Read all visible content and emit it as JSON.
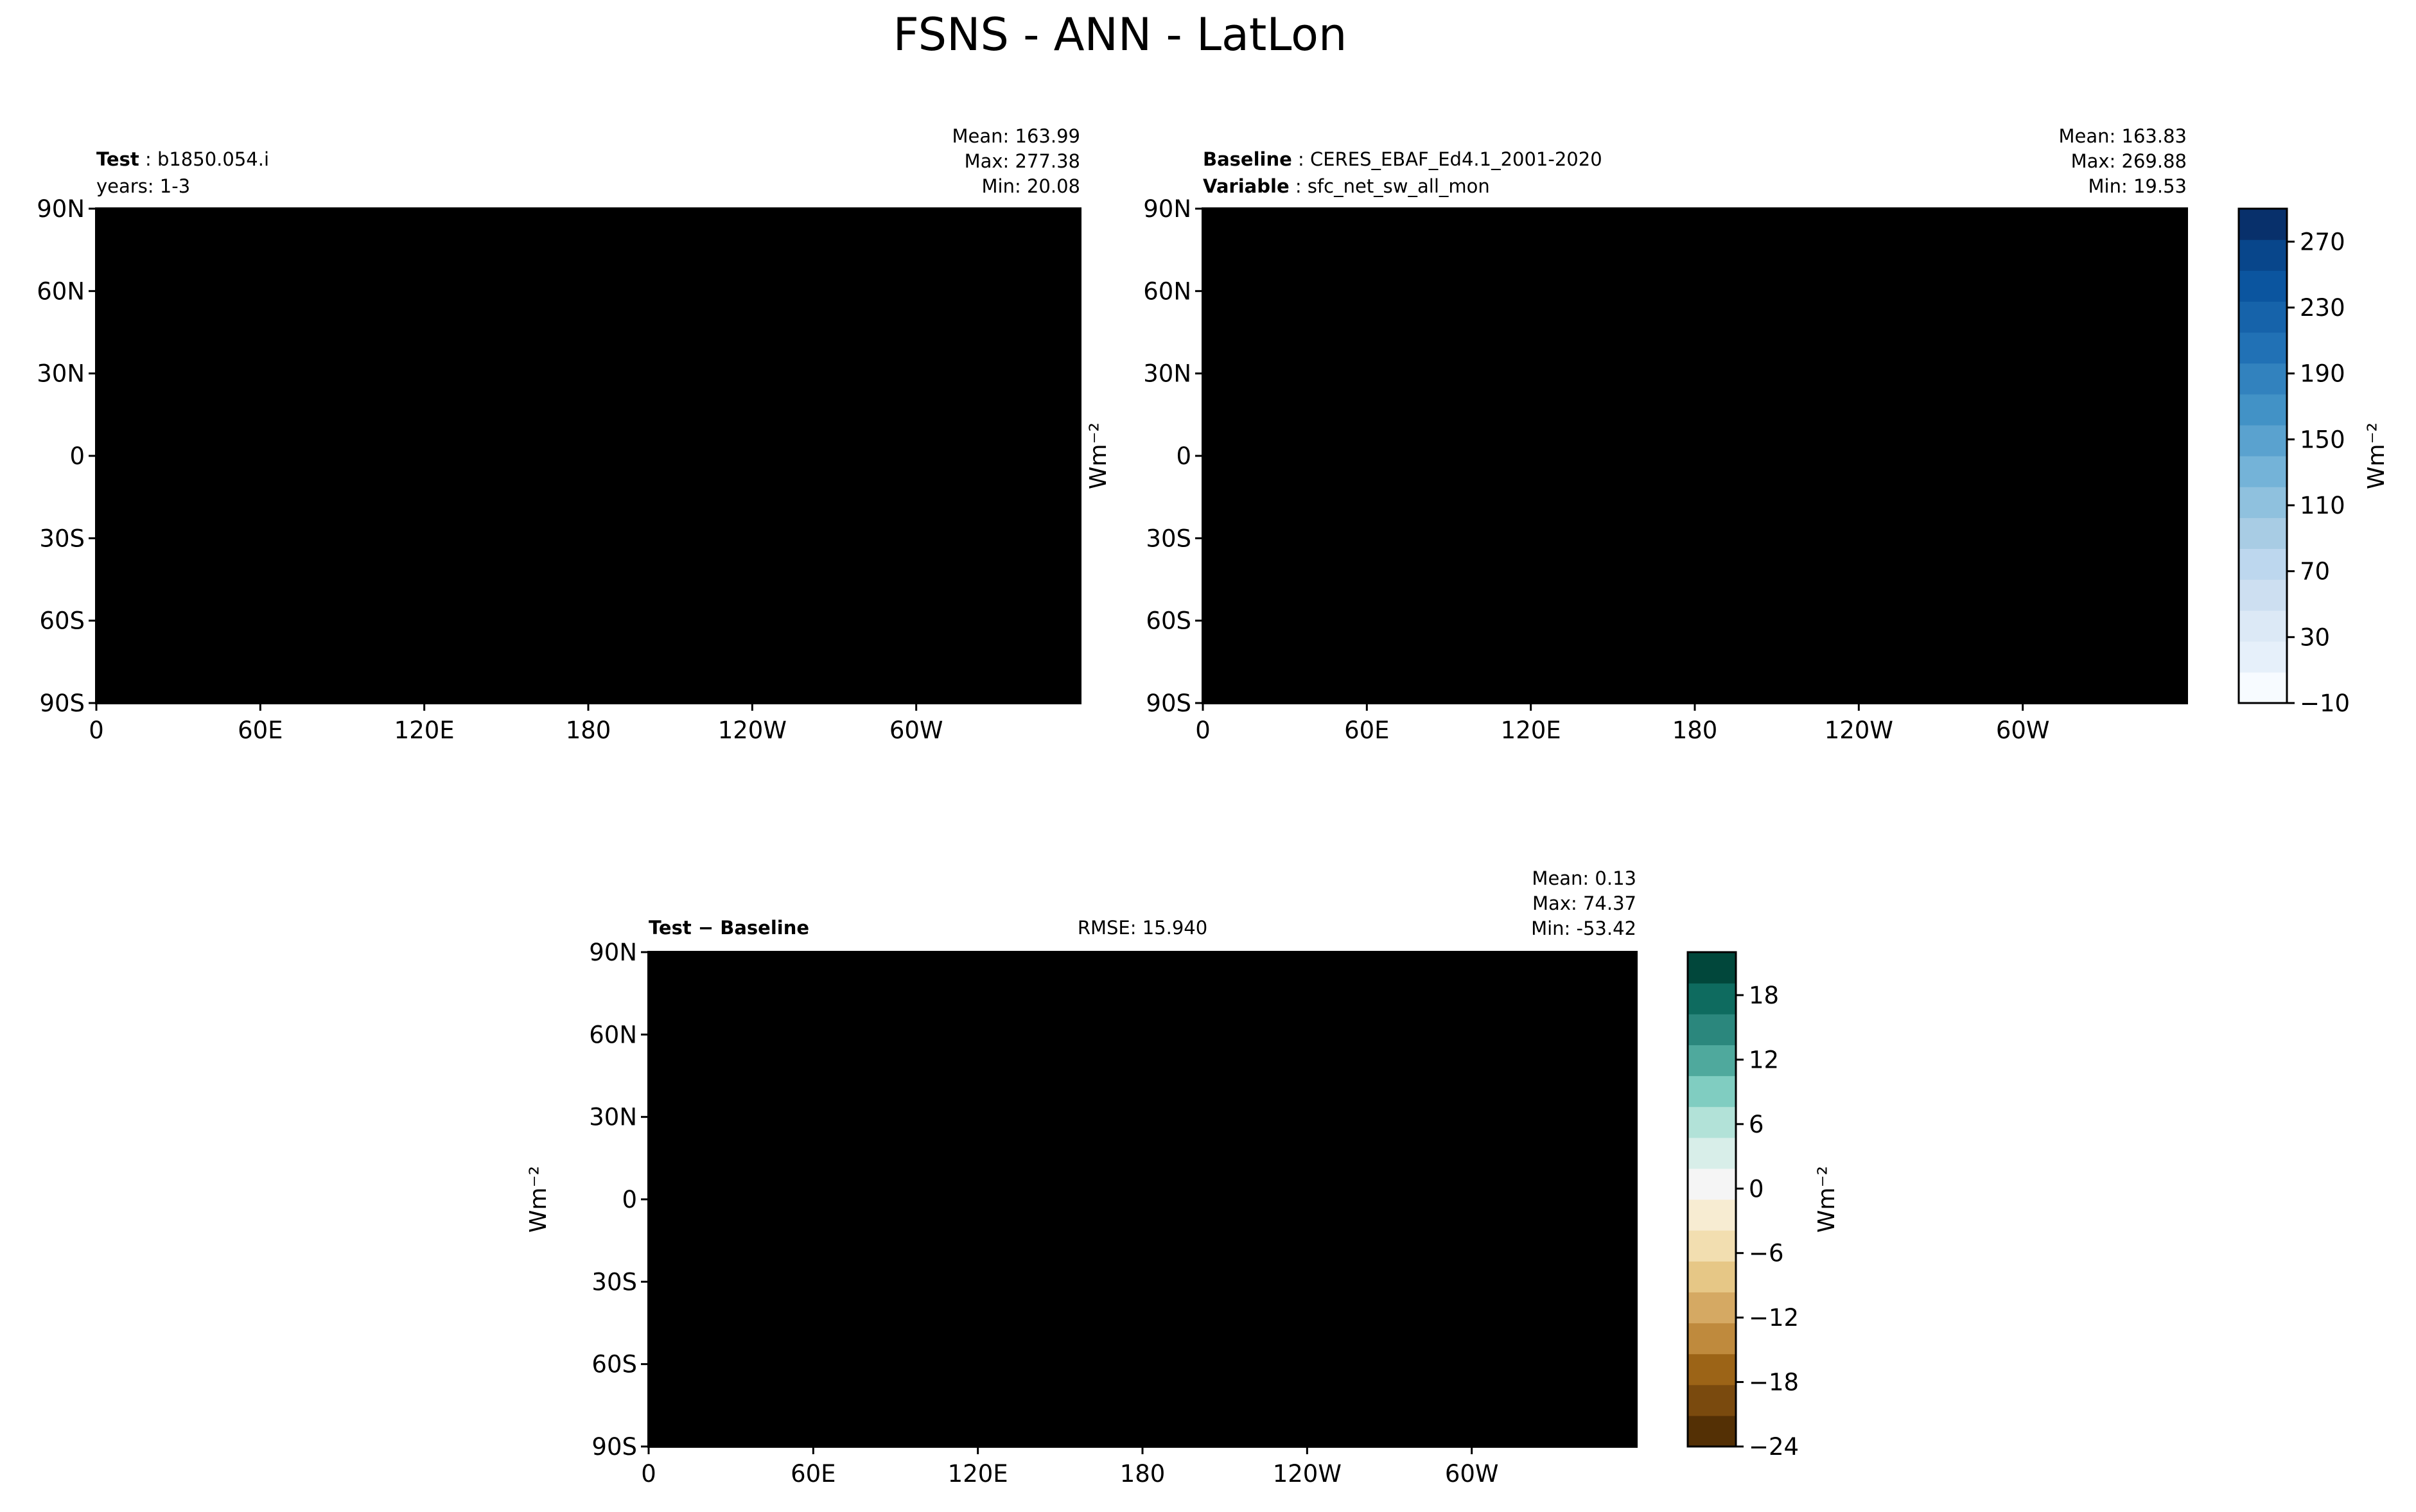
{
  "figure": {
    "title": "FSNS - ANN - LatLon"
  },
  "panels": {
    "test": {
      "label_bold": "Test",
      "label_text": "b1850.054.i",
      "sub_text": "years: 1-3",
      "stats": [
        "Mean: 163.99",
        "Max: 277.38",
        "Min: 20.08"
      ]
    },
    "baseline": {
      "label_bold": "Baseline",
      "label_text": "CERES_EBAF_Ed4.1_2001-2020",
      "sub_bold": "Variable",
      "sub_text": "sfc_net_sw_all_mon",
      "stats": [
        "Mean: 163.83",
        "Max: 269.88",
        "Min: 19.53"
      ],
      "ylabel": "Wm⁻²"
    },
    "diff": {
      "label_bold": "Test − Baseline",
      "rmse": "RMSE: 15.940",
      "stats": [
        "Mean:  0.13",
        "Max: 74.37",
        "Min: -53.42"
      ],
      "ylabel": "Wm⁻²"
    }
  },
  "axes": {
    "lat_ticks": [
      "90N",
      "60N",
      "30N",
      "0",
      "30S",
      "60S",
      "90S"
    ],
    "lon_ticks": [
      "0",
      "60E",
      "120E",
      "180",
      "120W",
      "60W"
    ]
  },
  "colorbars": {
    "main": {
      "unit": "Wm⁻²",
      "ticks": [
        "270",
        "230",
        "190",
        "150",
        "110",
        "70",
        "30",
        "−10"
      ],
      "levels": [
        -10,
        290
      ],
      "colors": [
        "#f7fbff",
        "#e6f0fa",
        "#dce9f6",
        "#cddff1",
        "#bdd7ee",
        "#a8cce4",
        "#8fc1de",
        "#74b3d8",
        "#5aa2cf",
        "#4292c6",
        "#3282be",
        "#2171b5",
        "#1663aa",
        "#0b559f",
        "#08468b",
        "#08306b"
      ]
    },
    "diff": {
      "unit": "Wm⁻²",
      "ticks": [
        "18",
        "12",
        "6",
        "0",
        "−6",
        "−12",
        "−18",
        "−24"
      ],
      "levels": [
        -24,
        22
      ],
      "colors": [
        "#543005",
        "#7a4a0e",
        "#9c6417",
        "#bf8a3d",
        "#d5a963",
        "#e6c786",
        "#f2deb0",
        "#f7ecd2",
        "#f5f5f5",
        "#d8eee9",
        "#b2e2d8",
        "#80cdc1",
        "#4fa99d",
        "#2b877d",
        "#0e6b5f",
        "#01473b"
      ]
    }
  }
}
